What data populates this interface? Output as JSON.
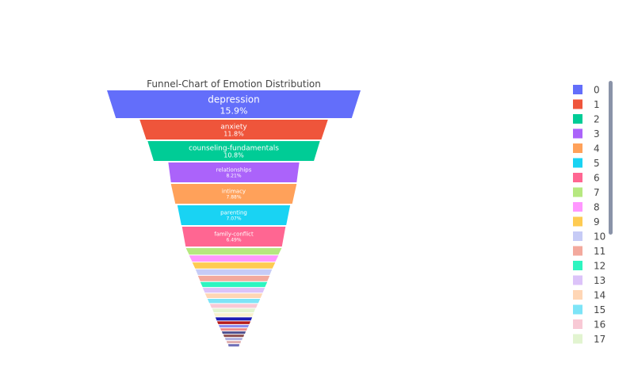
{
  "chart_data": {
    "type": "funnel",
    "title": "Funnel-Chart of Emotion Distribution",
    "labeled_bars": [
      {
        "label": "depression",
        "percent": "15.9%"
      },
      {
        "label": "anxiety",
        "percent": "11.8%"
      },
      {
        "label": "counseling-fundamentals",
        "percent": "10.8%"
      },
      {
        "label": "relationships",
        "percent": "8.21%"
      },
      {
        "label": "intimacy",
        "percent": "7.88%"
      },
      {
        "label": "parenting",
        "percent": "7.07%"
      },
      {
        "label": "family-conflict",
        "percent": "6.49%"
      }
    ],
    "values_percent": [
      15.9,
      11.8,
      10.8,
      8.21,
      7.88,
      7.07,
      6.49,
      6.0,
      5.6,
      5.2,
      4.8,
      4.5,
      4.2,
      3.9,
      3.6,
      3.3,
      3.0,
      2.7,
      2.5,
      2.3,
      2.1,
      1.9,
      1.7,
      1.5,
      1.3,
      1.1,
      0.9,
      0.7
    ],
    "legend": {
      "placement": "right",
      "entries": [
        "0",
        "1",
        "2",
        "3",
        "4",
        "5",
        "6",
        "7",
        "8",
        "9",
        "10",
        "11",
        "12",
        "13",
        "14",
        "15",
        "16",
        "17"
      ],
      "has_scrollbar": true
    },
    "colors": [
      "#636efa",
      "#EF553B",
      "#00cc96",
      "#ab63fa",
      "#FFA15A",
      "#19d3f3",
      "#FF6692",
      "#B6E880",
      "#FF97FF",
      "#FECB52",
      "#C6CBF6",
      "#F3A99D",
      "#2EF5C0",
      "#DCC3F9",
      "#FFD6B5",
      "#7DE4F7",
      "#F8C9D5",
      "#E2F4D0",
      "#F9F2CF",
      "#1C1CB4",
      "#B81C1C",
      "#8C8CEE",
      "#EE8C8C",
      "#4F4F8F",
      "#8F4F4F",
      "#AFAFE0",
      "#E0AFAF",
      "#6F6FB8"
    ]
  }
}
